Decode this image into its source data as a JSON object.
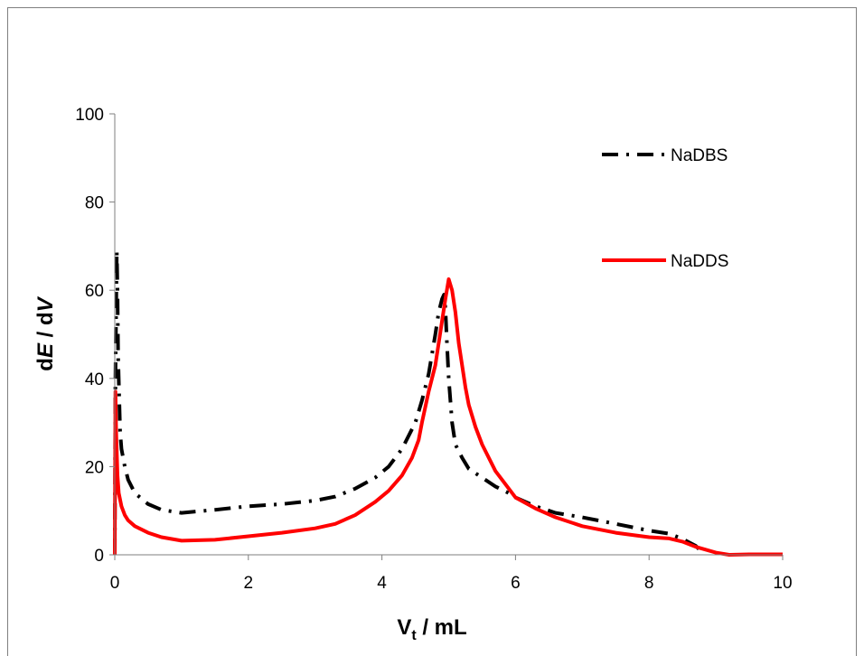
{
  "chart_data": {
    "type": "line",
    "xlim": [
      0,
      10
    ],
    "ylim": [
      0,
      100
    ],
    "xticks": [
      0,
      2,
      4,
      6,
      8,
      10
    ],
    "yticks": [
      0,
      20,
      40,
      60,
      80,
      100
    ],
    "xlabel": {
      "main": "V",
      "sub": "t",
      "rest": " / mL"
    },
    "ylabel": {
      "prefix": "d",
      "italic1": "E",
      "middle": " / d",
      "italic2": "V"
    },
    "grid": false,
    "legend_position": "top-right",
    "series": [
      {
        "name": "NaDBS",
        "color": "#000000",
        "style": "dash-dot",
        "x": [
          0.0,
          0.01,
          0.02,
          0.03,
          0.04,
          0.05,
          0.08,
          0.1,
          0.15,
          0.2,
          0.3,
          0.5,
          0.7,
          1.0,
          1.5,
          2.0,
          2.5,
          3.0,
          3.3,
          3.6,
          3.9,
          4.1,
          4.3,
          4.5,
          4.6,
          4.7,
          4.8,
          4.85,
          4.9,
          4.93,
          4.95,
          4.97,
          5.0,
          5.05,
          5.1,
          5.2,
          5.3,
          5.5,
          5.7,
          5.9,
          6.0,
          6.3,
          6.6,
          7.0,
          7.5,
          8.0,
          8.3,
          8.5,
          8.7,
          8.8
        ],
        "y": [
          0,
          40,
          55,
          69,
          60,
          45,
          28,
          24,
          20,
          17,
          14,
          11.5,
          10.2,
          9.5,
          10.2,
          11,
          11.5,
          12.3,
          13.2,
          15,
          17.5,
          20,
          24,
          30,
          35,
          41,
          50,
          55,
          58,
          59,
          56,
          49,
          40,
          30,
          25,
          22,
          19.5,
          17.5,
          15.5,
          14,
          13,
          11,
          9.5,
          8.5,
          7,
          5.5,
          4.8,
          3.6,
          2,
          0.5
        ]
      },
      {
        "name": "NaDDS",
        "color": "#ff0000",
        "style": "solid",
        "x": [
          0.0,
          0.01,
          0.02,
          0.04,
          0.06,
          0.1,
          0.15,
          0.2,
          0.3,
          0.5,
          0.7,
          1.0,
          1.5,
          2.0,
          2.5,
          3.0,
          3.3,
          3.6,
          3.9,
          4.1,
          4.3,
          4.45,
          4.55,
          4.6,
          4.7,
          4.8,
          4.85,
          4.9,
          4.95,
          5.0,
          5.05,
          5.1,
          5.15,
          5.2,
          5.25,
          5.3,
          5.4,
          5.5,
          5.7,
          5.9,
          6.0,
          6.3,
          6.6,
          7.0,
          7.5,
          8.0,
          8.3,
          8.5,
          8.7,
          9.0,
          9.2,
          9.5,
          10.0
        ],
        "y": [
          0,
          37,
          28,
          18,
          14,
          11,
          9,
          7.8,
          6.5,
          5,
          4,
          3.2,
          3.4,
          4.2,
          5,
          6,
          7,
          9,
          12,
          14.5,
          18,
          22,
          26,
          30,
          37,
          43,
          48,
          53,
          58,
          62.5,
          60,
          55,
          48,
          43,
          38,
          34,
          29,
          25,
          19,
          15,
          13,
          10.5,
          8.5,
          6.5,
          5,
          4,
          3.7,
          3,
          1.8,
          0.5,
          0,
          0.1,
          0.1
        ]
      }
    ]
  }
}
